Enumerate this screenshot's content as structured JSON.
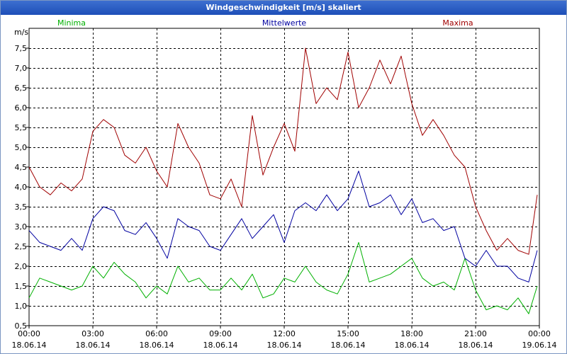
{
  "window": {
    "title": "Windgeschwindigkeit [m/s] skaliert"
  },
  "chart_data": {
    "type": "line",
    "title": "Windgeschwindigkeit [m/s] skaliert",
    "ylabel": "m/s",
    "xlabel": "",
    "ylim": [
      0.5,
      8.0
    ],
    "xlim_hours": [
      0,
      24
    ],
    "grid": true,
    "y_ticks": [
      "0,5",
      "1,0",
      "1,5",
      "2,0",
      "2,5",
      "3,0",
      "3,5",
      "4,0",
      "4,5",
      "5,0",
      "5,5",
      "6,0",
      "6,5",
      "7,0",
      "7,5"
    ],
    "y_tick_values": [
      0.5,
      1.0,
      1.5,
      2.0,
      2.5,
      3.0,
      3.5,
      4.0,
      4.5,
      5.0,
      5.5,
      6.0,
      6.5,
      7.0,
      7.5
    ],
    "x_ticks": [
      {
        "hour": 0,
        "time": "00:00",
        "date": "18.06.14"
      },
      {
        "hour": 3,
        "time": "03:00",
        "date": "18.06.14"
      },
      {
        "hour": 6,
        "time": "06:00",
        "date": "18.06.14"
      },
      {
        "hour": 9,
        "time": "09:00",
        "date": "18.06.14"
      },
      {
        "hour": 12,
        "time": "12:00",
        "date": "18.06.14"
      },
      {
        "hour": 15,
        "time": "15:00",
        "date": "18.06.14"
      },
      {
        "hour": 18,
        "time": "18:00",
        "date": "18.06.14"
      },
      {
        "hour": 21,
        "time": "21:00",
        "date": "18.06.14"
      },
      {
        "hour": 24,
        "time": "00:00",
        "date": "19.06.14"
      }
    ],
    "series": [
      {
        "name": "Minima",
        "color": "#00b000",
        "x": [
          0,
          0.5,
          1,
          1.5,
          2,
          2.5,
          3,
          3.5,
          4,
          4.5,
          5,
          5.5,
          6,
          6.5,
          7,
          7.5,
          8,
          8.5,
          9,
          9.5,
          10,
          10.5,
          11,
          11.5,
          12,
          12.5,
          13,
          13.5,
          14,
          14.5,
          15,
          15.5,
          16,
          16.5,
          17,
          17.5,
          18,
          18.5,
          19,
          19.5,
          20,
          20.5,
          21,
          21.5,
          22,
          22.5,
          23,
          23.5,
          23.9
        ],
        "values": [
          1.2,
          1.7,
          1.6,
          1.5,
          1.4,
          1.5,
          2.0,
          1.7,
          2.1,
          1.8,
          1.6,
          1.2,
          1.5,
          1.3,
          2.0,
          1.6,
          1.7,
          1.4,
          1.4,
          1.7,
          1.4,
          1.8,
          1.2,
          1.3,
          1.7,
          1.6,
          2.0,
          1.6,
          1.4,
          1.3,
          1.8,
          2.6,
          1.6,
          1.7,
          1.8,
          2.0,
          2.2,
          1.7,
          1.5,
          1.6,
          1.4,
          2.2,
          1.4,
          0.9,
          1.0,
          0.9,
          1.2,
          0.8,
          1.5
        ]
      },
      {
        "name": "Mittelwerte",
        "color": "#0000a0",
        "x": [
          0,
          0.5,
          1,
          1.5,
          2,
          2.5,
          3,
          3.5,
          4,
          4.5,
          5,
          5.5,
          6,
          6.5,
          7,
          7.5,
          8,
          8.5,
          9,
          9.5,
          10,
          10.5,
          11,
          11.5,
          12,
          12.5,
          13,
          13.5,
          14,
          14.5,
          15,
          15.5,
          16,
          16.5,
          17,
          17.5,
          18,
          18.5,
          19,
          19.5,
          20,
          20.5,
          21,
          21.5,
          22,
          22.5,
          23,
          23.5,
          23.9
        ],
        "values": [
          2.9,
          2.6,
          2.5,
          2.4,
          2.7,
          2.4,
          3.2,
          3.5,
          3.4,
          2.9,
          2.8,
          3.1,
          2.7,
          2.2,
          3.2,
          3.0,
          2.9,
          2.5,
          2.4,
          2.8,
          3.2,
          2.7,
          3.0,
          3.3,
          2.6,
          3.4,
          3.6,
          3.4,
          3.8,
          3.4,
          3.7,
          4.4,
          3.5,
          3.6,
          3.8,
          3.3,
          3.7,
          3.1,
          3.2,
          2.9,
          3.0,
          2.2,
          2.0,
          2.4,
          2.0,
          2.0,
          1.7,
          1.6,
          2.4
        ]
      },
      {
        "name": "Maxima",
        "color": "#a00000",
        "x": [
          0,
          0.5,
          1,
          1.5,
          2,
          2.5,
          3,
          3.5,
          4,
          4.5,
          5,
          5.5,
          6,
          6.5,
          7,
          7.5,
          8,
          8.5,
          9,
          9.5,
          10,
          10.5,
          11,
          11.5,
          12,
          12.5,
          13,
          13.5,
          14,
          14.5,
          15,
          15.5,
          16,
          16.5,
          17,
          17.5,
          18,
          18.5,
          19,
          19.5,
          20,
          20.5,
          21,
          21.5,
          22,
          22.5,
          23,
          23.5,
          23.9
        ],
        "values": [
          4.5,
          4.0,
          3.8,
          4.1,
          3.9,
          4.2,
          5.4,
          5.7,
          5.5,
          4.8,
          4.6,
          5.0,
          4.4,
          4.0,
          5.6,
          5.0,
          4.6,
          3.8,
          3.7,
          4.2,
          3.5,
          5.8,
          4.3,
          5.0,
          5.6,
          4.9,
          7.5,
          6.1,
          6.5,
          6.2,
          7.4,
          6.0,
          6.5,
          7.2,
          6.6,
          7.3,
          6.1,
          5.3,
          5.7,
          5.3,
          4.8,
          4.5,
          3.5,
          2.9,
          2.4,
          2.7,
          2.4,
          2.3,
          3.8
        ]
      }
    ]
  }
}
